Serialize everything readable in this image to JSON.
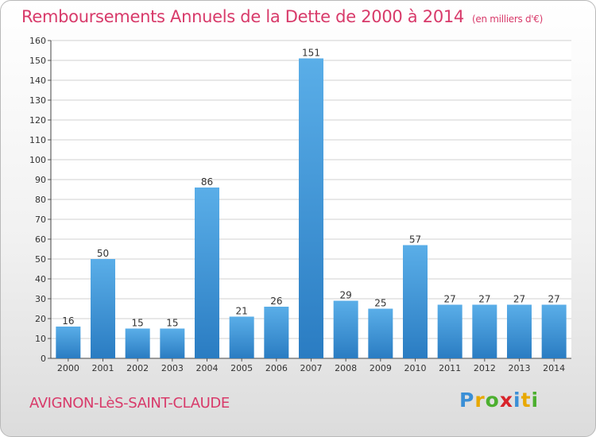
{
  "header": {
    "title": "Remboursements Annuels de la Dette de 2000 à 2014",
    "unit": "(en milliers d'€)"
  },
  "footer": {
    "commune": "AVIGNON-LèS-SAINT-CLAUDE",
    "logo_letters": [
      "P",
      "r",
      "o",
      "x",
      "i",
      "t",
      "i"
    ],
    "logo_colors": [
      "#3a8fd6",
      "#e8a800",
      "#4caf2f",
      "#d8232a",
      "#3a8fd6",
      "#e8a800",
      "#4caf2f"
    ]
  },
  "chart_data": {
    "type": "bar",
    "categories": [
      "2000",
      "2001",
      "2002",
      "2003",
      "2004",
      "2005",
      "2006",
      "2007",
      "2008",
      "2009",
      "2010",
      "2011",
      "2012",
      "2013",
      "2014"
    ],
    "values": [
      16,
      50,
      15,
      15,
      86,
      21,
      26,
      151,
      29,
      25,
      57,
      27,
      27,
      27,
      27
    ],
    "ylim": [
      0,
      160
    ],
    "yticks": [
      0,
      10,
      20,
      30,
      40,
      50,
      60,
      70,
      80,
      90,
      100,
      110,
      120,
      130,
      140,
      150,
      160
    ],
    "grid": true,
    "bar_color_top": "#5aaee8",
    "bar_color_bottom": "#2a7cc2"
  }
}
